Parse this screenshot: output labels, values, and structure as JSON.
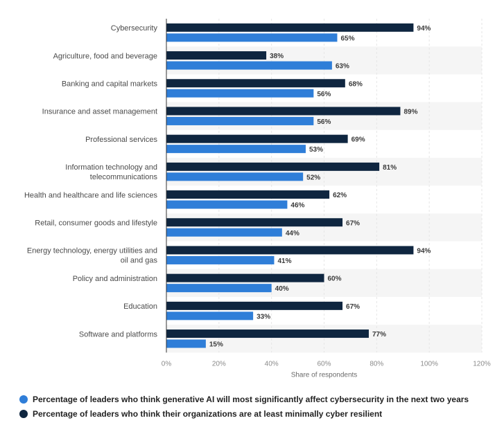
{
  "colors": {
    "series_generative_ai": "#2f7ed8",
    "series_cyber_resilient": "#0f2640",
    "grid": "#e6e6e6",
    "band": "#f5f5f5",
    "axis": "#333333"
  },
  "legend": [
    {
      "label": "Percentage of leaders who think generative AI will most significantly affect cybersecurity in the next two years",
      "color": "#2f7ed8"
    },
    {
      "label": "Percentage of leaders who think their organizations are at least minimally cyber resilient",
      "color": "#0f2640"
    }
  ],
  "chart_data": {
    "type": "bar",
    "orientation": "horizontal",
    "title": "",
    "xlabel": "Share of respondents",
    "ylabel": "",
    "xlim": [
      0,
      120
    ],
    "xticks": [
      "0%",
      "20%",
      "40%",
      "60%",
      "80%",
      "100%",
      "120%"
    ],
    "grid": true,
    "legend_position": "bottom-left",
    "value_suffix": "%",
    "categories": [
      "Cybersecurity",
      "Agriculture, food and beverage",
      "Banking and capital markets",
      "Insurance and asset management",
      "Professional services",
      "Information technology and telecommunications",
      "Health and healthcare and life sciences",
      "Retail, consumer goods and lifestyle",
      "Energy technology, energy utilities and oil and gas",
      "Policy and administration",
      "Education",
      "Software and platforms"
    ],
    "category_label_lines": [
      [
        "Cybersecurity"
      ],
      [
        "Agriculture, food and beverage"
      ],
      [
        "Banking and capital markets"
      ],
      [
        "Insurance and asset management"
      ],
      [
        "Professional services"
      ],
      [
        "Information technology and",
        "telecommunications"
      ],
      [
        "Health and healthcare and life sciences"
      ],
      [
        "Retail, consumer goods and lifestyle"
      ],
      [
        "Energy technology, energy utilities and",
        "oil and gas"
      ],
      [
        "Policy and administration"
      ],
      [
        "Education"
      ],
      [
        "Software and platforms"
      ]
    ],
    "series": [
      {
        "name": "Percentage of leaders who think their organizations are at least minimally cyber resilient",
        "color": "#0f2640",
        "values": [
          94,
          38,
          68,
          89,
          69,
          81,
          62,
          67,
          94,
          60,
          67,
          77
        ]
      },
      {
        "name": "Percentage of leaders who think generative AI will most significantly affect cybersecurity in the next two years",
        "color": "#2f7ed8",
        "values": [
          65,
          63,
          56,
          56,
          53,
          52,
          46,
          44,
          41,
          40,
          33,
          15
        ]
      }
    ]
  }
}
